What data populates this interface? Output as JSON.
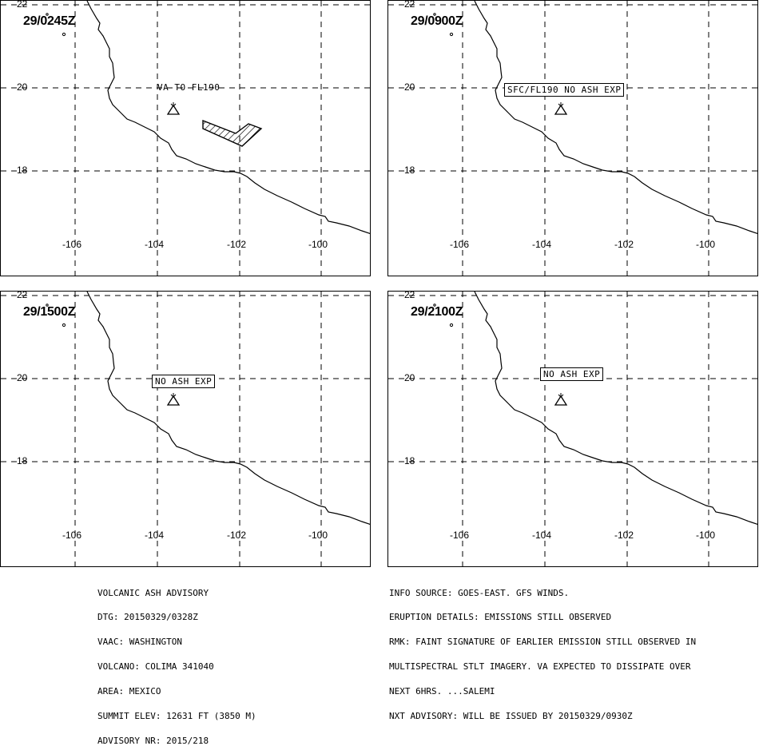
{
  "panels": [
    {
      "timestamp": "29/0245Z",
      "annotation": "VA TO FL190",
      "annotation_boxed": false,
      "ash_polygon": true
    },
    {
      "timestamp": "29/0900Z",
      "annotation": "SFC/FL190 NO ASH EXP",
      "annotation_boxed": true,
      "ash_polygon": false
    },
    {
      "timestamp": "29/1500Z",
      "annotation": "NO ASH EXP",
      "annotation_boxed": true,
      "ash_polygon": false
    },
    {
      "timestamp": "29/2100Z",
      "annotation": "NO ASH EXP",
      "annotation_boxed": true,
      "ash_polygon": false
    }
  ],
  "lat_labels": [
    "22",
    "20",
    "18"
  ],
  "lon_labels": [
    "-106",
    "-104",
    "-102",
    "-100"
  ],
  "advisory_left": [
    "VOLCANIC ASH ADVISORY",
    "DTG: 20150329/0328Z",
    "VAAC: WASHINGTON",
    "VOLCANO: COLIMA 341040",
    "AREA: MEXICO",
    "SUMMIT ELEV: 12631 FT (3850 M)",
    "ADVISORY NR: 2015/218"
  ],
  "advisory_right": [
    "INFO SOURCE: GOES-EAST. GFS WINDS.",
    "ERUPTION DETAILS: EMISSIONS STILL OBSERVED",
    "RMK: FAINT SIGNATURE OF EARLIER EMISSION STILL OBSERVED IN",
    "MULTISPECTRAL STLT IMAGERY. VA EXPECTED TO DISSIPATE OVER",
    "NEXT 6HRS. ...SALEMI",
    "NXT ADVISORY: WILL BE ISSUED BY 20150329/0930Z"
  ],
  "icons": [
    "volcano-icon"
  ]
}
